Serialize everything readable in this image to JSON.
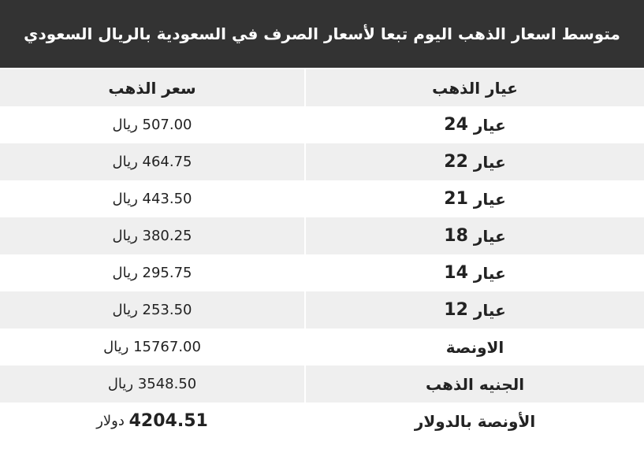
{
  "header": {
    "title": "متوسط اسعار الذهب اليوم تبعا لأسعار الصرف في السعودية بالريال السعودي"
  },
  "table": {
    "columns": [
      "عيار الذهب",
      "سعر الذهب"
    ],
    "rows": [
      {
        "cells": [
          [
            "عيار",
            "24"
          ],
          [
            "507.00",
            "ريال"
          ]
        ]
      },
      {
        "cells": [
          [
            "عيار",
            "22"
          ],
          [
            "464.75",
            "ريال"
          ]
        ]
      },
      {
        "cells": [
          [
            "عيار",
            "21"
          ],
          [
            "443.50",
            "ريال"
          ]
        ]
      },
      {
        "cells": [
          [
            "عيار",
            "18"
          ],
          [
            "380.25",
            "ريال"
          ]
        ]
      },
      {
        "cells": [
          [
            "عيار",
            "14"
          ],
          [
            "295.75",
            "ريال"
          ]
        ]
      },
      {
        "cells": [
          [
            "عيار",
            "12"
          ],
          [
            "253.50",
            "ريال"
          ]
        ]
      },
      {
        "cells": [
          [
            "الاونصة"
          ],
          [
            "15767.00",
            "ريال"
          ]
        ]
      },
      {
        "cells": [
          [
            "الجنيه الذهب"
          ],
          [
            "3548.50",
            "ريال"
          ]
        ]
      },
      {
        "cells": [
          [
            "الأونصة بالدولار"
          ],
          [
            "4204.51",
            "دولار"
          ]
        ],
        "price_bold": true
      }
    ]
  }
}
